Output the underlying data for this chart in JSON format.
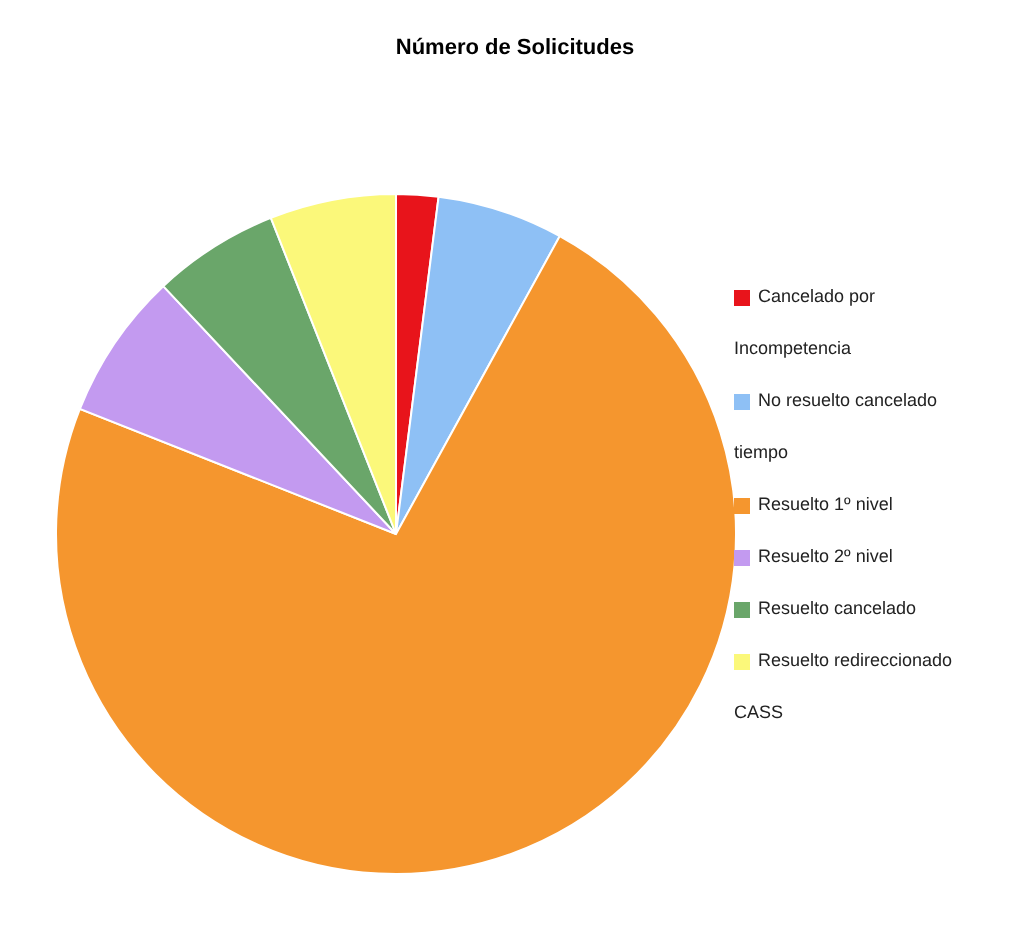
{
  "chart_data": {
    "type": "pie",
    "title": "Número de Solicitudes",
    "categories": [
      "Cancelado por Incompetencia",
      "No resuelto cancelado tiempo",
      "Resuelto 1º nivel",
      "Resuelto 2º nivel",
      "Resuelto cancelado",
      "Resuelto redireccionado CASS"
    ],
    "values": [
      2,
      6,
      73,
      7,
      6,
      6
    ],
    "colors": [
      "#e8141b",
      "#8ec0f5",
      "#f5962e",
      "#c39af0",
      "#6aa66a",
      "#fbf87a"
    ],
    "legend": "right"
  }
}
